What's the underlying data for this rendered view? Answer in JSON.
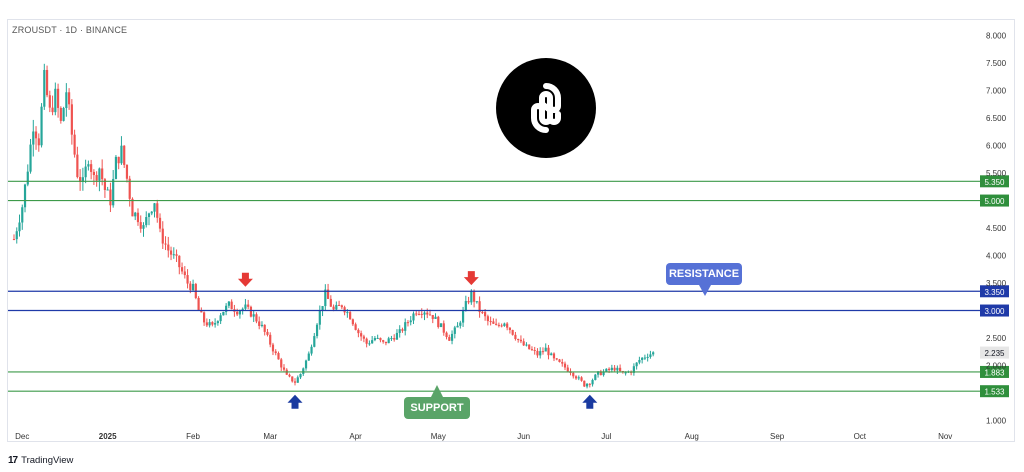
{
  "header": {
    "symbol_line": "ZROUSDT · 1D · BINANCE"
  },
  "branding": {
    "name": "TradingView",
    "mark": "17"
  },
  "annotations": {
    "resistance_label": "RESISTANCE",
    "support_label": "SUPPORT"
  },
  "colors": {
    "up": "#26a69a",
    "down": "#ef5350",
    "resistance": "#1f3aa8",
    "support": "#3d9a4a",
    "resistance_callout": "#5671d6",
    "support_callout": "#5aa468",
    "sell_arrow": "#e53935",
    "buy_arrow": "#1a3aa0",
    "last_price_tag": "#e6e6e6"
  },
  "chart_data": {
    "type": "candlestick",
    "title": "ZROUSDT · 1D · BINANCE",
    "xlabel": "",
    "ylabel": "",
    "x_ticks": [
      "Dec",
      "2025",
      "Feb",
      "Mar",
      "Apr",
      "May",
      "Jun",
      "Jul",
      "Aug",
      "Sep",
      "Oct",
      "Nov"
    ],
    "y_ticks": [
      "8.000",
      "7.500",
      "7.000",
      "6.500",
      "6.000",
      "5.500",
      "4.500",
      "4.000",
      "3.500",
      "2.500",
      "2.000",
      "1.000"
    ],
    "ylim": [
      0.8,
      8.1
    ],
    "x_range": [
      "2024-11-28",
      "2025-11-10"
    ],
    "close_path": [
      [
        "2024-11-28",
        4.3
      ],
      [
        "2024-12-01",
        4.9
      ],
      [
        "2024-12-03",
        5.6
      ],
      [
        "2024-12-05",
        6.4
      ],
      [
        "2024-12-07",
        6.1
      ],
      [
        "2024-12-09",
        7.2
      ],
      [
        "2024-12-11",
        6.6
      ],
      [
        "2024-12-13",
        6.9
      ],
      [
        "2024-12-15",
        6.4
      ],
      [
        "2024-12-17",
        7.0
      ],
      [
        "2024-12-19",
        6.2
      ],
      [
        "2024-12-21",
        5.5
      ],
      [
        "2024-12-23",
        5.3
      ],
      [
        "2024-12-25",
        5.8
      ],
      [
        "2024-12-27",
        5.4
      ],
      [
        "2024-12-29",
        5.6
      ],
      [
        "2024-12-31",
        5.2
      ],
      [
        "2025-01-02",
        5.0
      ],
      [
        "2025-01-04",
        5.7
      ],
      [
        "2025-01-06",
        5.9
      ],
      [
        "2025-01-08",
        5.4
      ],
      [
        "2025-01-10",
        4.8
      ],
      [
        "2025-01-12",
        4.7
      ],
      [
        "2025-01-14",
        4.5
      ],
      [
        "2025-01-16",
        4.8
      ],
      [
        "2025-01-18",
        5.0
      ],
      [
        "2025-01-20",
        4.4
      ],
      [
        "2025-01-23",
        4.1
      ],
      [
        "2025-01-26",
        3.9
      ],
      [
        "2025-01-28",
        3.7
      ],
      [
        "2025-01-30",
        3.5
      ],
      [
        "2025-02-01",
        3.4
      ],
      [
        "2025-02-03",
        3.0
      ],
      [
        "2025-02-05",
        2.8
      ],
      [
        "2025-02-08",
        2.7
      ],
      [
        "2025-02-11",
        2.95
      ],
      [
        "2025-02-14",
        3.1
      ],
      [
        "2025-02-17",
        3.0
      ],
      [
        "2025-02-20",
        3.05
      ],
      [
        "2025-02-23",
        2.9
      ],
      [
        "2025-02-26",
        2.7
      ],
      [
        "2025-03-01",
        2.4
      ],
      [
        "2025-03-04",
        2.1
      ],
      [
        "2025-03-07",
        1.8
      ],
      [
        "2025-03-10",
        1.7
      ],
      [
        "2025-03-12",
        1.85
      ],
      [
        "2025-03-15",
        2.2
      ],
      [
        "2025-03-18",
        2.8
      ],
      [
        "2025-03-21",
        3.3
      ],
      [
        "2025-03-24",
        3.0
      ],
      [
        "2025-03-27",
        3.1
      ],
      [
        "2025-03-30",
        2.9
      ],
      [
        "2025-04-02",
        2.6
      ],
      [
        "2025-04-05",
        2.4
      ],
      [
        "2025-04-08",
        2.5
      ],
      [
        "2025-04-11",
        2.4
      ],
      [
        "2025-04-14",
        2.5
      ],
      [
        "2025-04-17",
        2.6
      ],
      [
        "2025-04-20",
        2.8
      ],
      [
        "2025-04-23",
        3.0
      ],
      [
        "2025-04-26",
        3.0
      ],
      [
        "2025-04-29",
        2.9
      ],
      [
        "2025-05-02",
        2.7
      ],
      [
        "2025-05-05",
        2.5
      ],
      [
        "2025-05-08",
        2.7
      ],
      [
        "2025-05-11",
        3.1
      ],
      [
        "2025-05-13",
        3.3
      ],
      [
        "2025-05-16",
        3.0
      ],
      [
        "2025-05-19",
        2.8
      ],
      [
        "2025-05-22",
        2.7
      ],
      [
        "2025-05-25",
        2.8
      ],
      [
        "2025-05-28",
        2.6
      ],
      [
        "2025-05-31",
        2.4
      ],
      [
        "2025-06-03",
        2.3
      ],
      [
        "2025-06-06",
        2.2
      ],
      [
        "2025-06-09",
        2.3
      ],
      [
        "2025-06-12",
        2.1
      ],
      [
        "2025-06-15",
        2.0
      ],
      [
        "2025-06-18",
        1.9
      ],
      [
        "2025-06-21",
        1.75
      ],
      [
        "2025-06-23",
        1.65
      ],
      [
        "2025-06-25",
        1.7
      ],
      [
        "2025-06-28",
        1.85
      ],
      [
        "2025-07-01",
        1.9
      ],
      [
        "2025-07-04",
        1.95
      ],
      [
        "2025-07-07",
        1.85
      ],
      [
        "2025-07-10",
        1.9
      ],
      [
        "2025-07-13",
        2.1
      ],
      [
        "2025-07-16",
        2.2
      ],
      [
        "2025-07-19",
        2.24
      ]
    ],
    "last_price": "2.235",
    "levels": [
      {
        "price": 5.35,
        "label": "5.350",
        "kind": "resistance-zone-top",
        "color": "#3d9a4a"
      },
      {
        "price": 5.0,
        "label": "5.000",
        "kind": "resistance-zone-bottom",
        "color": "#3d9a4a"
      },
      {
        "price": 3.35,
        "label": "3.350",
        "kind": "resistance",
        "color": "#1f3aa8"
      },
      {
        "price": 3.0,
        "label": "3.000",
        "kind": "resistance",
        "color": "#1f3aa8"
      },
      {
        "price": 1.883,
        "label": "1.883",
        "kind": "support",
        "color": "#3d9a4a"
      },
      {
        "price": 1.533,
        "label": "1.533",
        "kind": "support",
        "color": "#3d9a4a"
      }
    ],
    "markers": [
      {
        "date": "2025-02-20",
        "price": 3.45,
        "direction": "down"
      },
      {
        "date": "2025-05-13",
        "price": 3.48,
        "direction": "down"
      },
      {
        "date": "2025-03-10",
        "price": 1.45,
        "direction": "up"
      },
      {
        "date": "2025-06-25",
        "price": 1.45,
        "direction": "up"
      }
    ],
    "grid": false,
    "legend": "none"
  }
}
